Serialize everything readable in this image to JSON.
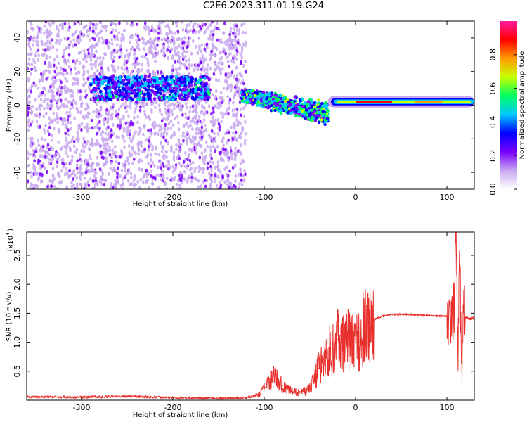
{
  "title": "C2E6.2023.311.01.19.G24",
  "chart_data": [
    {
      "type": "heatmap",
      "xlabel": "Height of straight line (km)",
      "ylabel": "Frequency (Hz)",
      "xlim": [
        -360,
        130
      ],
      "ylim": [
        -50,
        50
      ],
      "xticks": [
        -300,
        -200,
        -100,
        0,
        100
      ],
      "xtick_labels": [
        "-300",
        "-200",
        "-100",
        "0",
        "100"
      ],
      "yticks": [
        -40,
        -20,
        0,
        20,
        40
      ],
      "ytick_labels": [
        "-40",
        "-20",
        "0",
        "20",
        "40"
      ],
      "colorbar": {
        "label": "Normalized spectral amplitude",
        "range": [
          0,
          1
        ],
        "ticks": [
          0.0,
          0.2,
          0.4,
          0.6,
          0.8
        ],
        "tick_labels": [
          "0.0",
          "0.2",
          "0.4",
          "0.6",
          "0.8"
        ],
        "colors": [
          "#ffffff",
          "#c8a8f0",
          "#7a00ff",
          "#0000ff",
          "#00c8ff",
          "#00ff60",
          "#c8ff00",
          "#ff9a00",
          "#ff0000",
          "#ff1aa0"
        ]
      },
      "features": [
        {
          "name": "noise region",
          "x_range": [
            -360,
            -120
          ],
          "freq_range": [
            -50,
            50
          ],
          "amplitude": 0.05
        },
        {
          "name": "early band",
          "x_range": [
            -290,
            -160
          ],
          "freq_center": 10,
          "amplitude": 0.3
        },
        {
          "name": "converging band",
          "x_range": [
            -125,
            -30
          ],
          "freq_start": 8,
          "freq_end": 0,
          "amplitude": 0.45
        },
        {
          "name": "steady band",
          "x_range": [
            -30,
            130
          ],
          "freq_center": 2,
          "amplitude": 0.9
        }
      ]
    },
    {
      "type": "line",
      "xlabel": "Height of straight line (km)",
      "ylabel": "SNR (10 * v/v)",
      "multiplier_label": "(x10",
      "multiplier_exp": "4",
      "multiplier_close": ")",
      "xlim": [
        -360,
        130
      ],
      "ylim": [
        0,
        2.9
      ],
      "xticks": [
        -300,
        -200,
        -100,
        0,
        100
      ],
      "xtick_labels": [
        "-300",
        "-200",
        "-100",
        "0",
        "100"
      ],
      "yticks": [
        0.5,
        1.0,
        1.5,
        2.0,
        2.5
      ],
      "ytick_labels": [
        "0.5",
        "1.0",
        "1.5",
        "2.0",
        "2.5"
      ],
      "color": "#e8302c",
      "series": [
        {
          "x": [
            -360,
            -300,
            -250,
            -200,
            -150,
            -120,
            -105,
            -95,
            -90,
            -80,
            -70,
            -60,
            -50,
            -40,
            -35,
            -30,
            -25,
            -20,
            -15,
            -10,
            -5,
            0,
            5,
            10,
            15,
            20,
            25,
            30,
            35,
            40,
            60,
            80,
            100,
            105,
            108,
            110,
            112,
            114,
            116,
            118,
            120,
            125,
            130
          ],
          "values": [
            0.06,
            0.05,
            0.07,
            0.04,
            0.03,
            0.04,
            0.1,
            0.3,
            0.45,
            0.25,
            0.15,
            0.12,
            0.2,
            0.55,
            0.7,
            0.8,
            0.9,
            1.05,
            0.9,
            1.1,
            0.95,
            1.0,
            1.1,
            1.25,
            1.3,
            1.38,
            1.42,
            1.45,
            1.47,
            1.48,
            1.48,
            1.46,
            1.45,
            1.3,
            1.6,
            2.9,
            0.5,
            2.7,
            0.3,
            1.6,
            1.45,
            1.4,
            1.42
          ]
        }
      ]
    }
  ]
}
